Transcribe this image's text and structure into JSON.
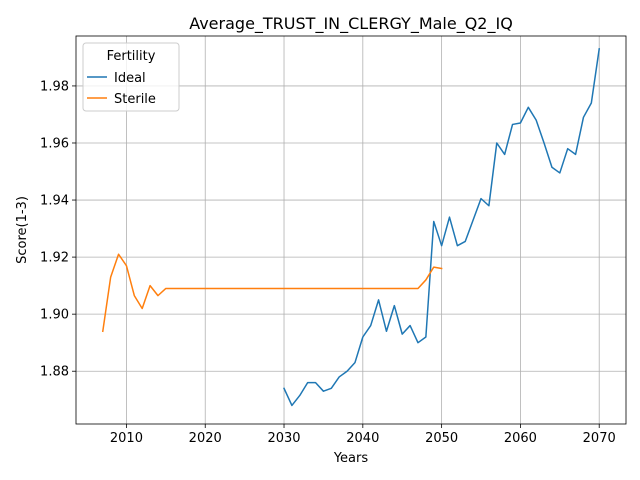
{
  "chart_data": {
    "type": "line",
    "title": "Average_TRUST_IN_CLERGY_Male_Q2_IQ",
    "xlabel": "Years",
    "ylabel": "Score(1-3)",
    "xlim": [
      2003.6,
      2073.4
    ],
    "ylim": [
      1.8615,
      1.9975
    ],
    "xticks": [
      2010,
      2020,
      2030,
      2040,
      2050,
      2060,
      2070
    ],
    "yticks": [
      1.88,
      1.9,
      1.92,
      1.94,
      1.96,
      1.98
    ],
    "ytick_labels": [
      "1.88",
      "1.90",
      "1.92",
      "1.94",
      "1.96",
      "1.98"
    ],
    "grid": true,
    "legend": {
      "title": "Fertility",
      "location": "upper-left"
    },
    "series": [
      {
        "name": "Ideal",
        "color": "#1f77b4",
        "x": [
          2030,
          2031,
          2032,
          2033,
          2034,
          2035,
          2036,
          2037,
          2038,
          2039,
          2040,
          2041,
          2042,
          2043,
          2044,
          2045,
          2046,
          2047,
          2048,
          2049,
          2050,
          2051,
          2052,
          2053,
          2054,
          2055,
          2056,
          2057,
          2058,
          2059,
          2060,
          2061,
          2062,
          2063,
          2064,
          2065,
          2066,
          2067,
          2068,
          2069,
          2070
        ],
        "y": [
          1.874,
          1.868,
          1.8715,
          1.876,
          1.876,
          1.873,
          1.874,
          1.878,
          1.88,
          1.883,
          1.892,
          1.896,
          1.905,
          1.894,
          1.903,
          1.893,
          1.896,
          1.89,
          1.892,
          1.9325,
          1.924,
          1.934,
          1.924,
          1.9255,
          1.933,
          1.9405,
          1.938,
          1.96,
          1.956,
          1.9665,
          1.967,
          1.9725,
          1.968,
          1.96,
          1.9515,
          1.9495,
          1.958,
          1.956,
          1.969,
          1.974,
          1.993
        ]
      },
      {
        "name": "Sterile",
        "color": "#ff7f0e",
        "x": [
          2007,
          2008,
          2009,
          2010,
          2011,
          2012,
          2013,
          2014,
          2015,
          2016,
          2020,
          2025,
          2030,
          2035,
          2040,
          2045,
          2047,
          2048,
          2049,
          2050
        ],
        "y": [
          1.894,
          1.913,
          1.921,
          1.917,
          1.9065,
          1.902,
          1.91,
          1.9065,
          1.909,
          1.909,
          1.909,
          1.909,
          1.909,
          1.909,
          1.909,
          1.909,
          1.909,
          1.912,
          1.9165,
          1.916
        ]
      }
    ]
  }
}
